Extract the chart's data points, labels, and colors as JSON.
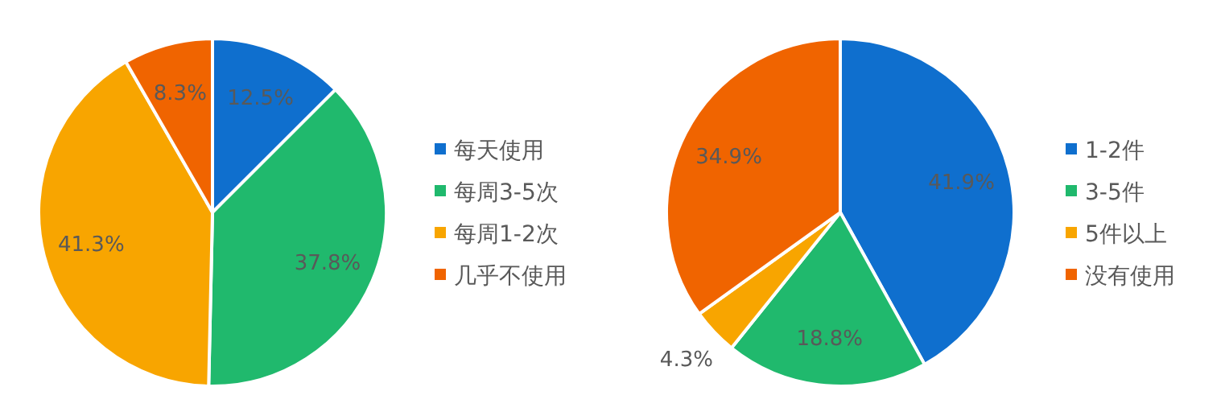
{
  "chart_data": [
    {
      "type": "pie",
      "categories": [
        "每天使用",
        "每周3-5次",
        "每周1-2次",
        "几乎不使用"
      ],
      "values": [
        12.5,
        37.8,
        41.3,
        8.3
      ],
      "colors": [
        "#0f6fce",
        "#20b96d",
        "#f8a500",
        "#f06400"
      ],
      "value_labels": [
        "12.5%",
        "37.8%",
        "41.3%",
        "8.3%"
      ],
      "legend": "right"
    },
    {
      "type": "pie",
      "categories": [
        "1-2件",
        "3-5件",
        "5件以上",
        "没有使用"
      ],
      "values": [
        41.9,
        18.8,
        4.3,
        34.9
      ],
      "colors": [
        "#0f6fce",
        "#20b96d",
        "#f8a500",
        "#f06400"
      ],
      "value_labels": [
        "41.9%",
        "18.8%",
        "4.3%",
        "34.9%"
      ],
      "legend": "right"
    }
  ]
}
